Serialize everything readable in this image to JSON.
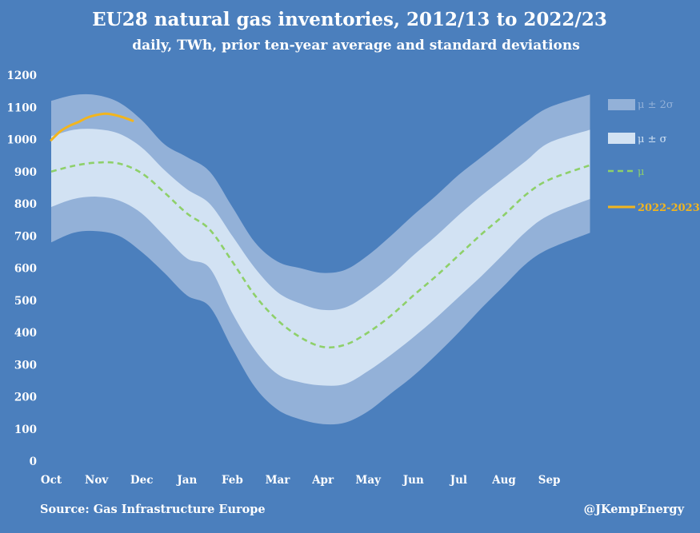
{
  "chart_data": {
    "type": "area",
    "title": "EU28 natural gas inventories, 2012/13 to 2022/23",
    "subtitle": "daily, TWh, prior ten-year average and standard deviations",
    "xlabel": "",
    "ylabel": "",
    "ylim": [
      0,
      1200
    ],
    "yticks": [
      0,
      100,
      200,
      300,
      400,
      500,
      600,
      700,
      800,
      900,
      1000,
      1100,
      1200
    ],
    "months": [
      "Oct",
      "Nov",
      "Dec",
      "Jan",
      "Feb",
      "Mar",
      "Apr",
      "May",
      "Jun",
      "Jul",
      "Aug",
      "Sep"
    ],
    "x_month_index": [
      0,
      0.5,
      1,
      1.5,
      2,
      2.5,
      3,
      3.5,
      4,
      4.5,
      5,
      5.5,
      6,
      6.5,
      7,
      7.5,
      8,
      8.5,
      9,
      9.5,
      10,
      10.5,
      11,
      11.9
    ],
    "series": [
      {
        "name": "μ",
        "label": "μ",
        "color": "#8ed06a",
        "values": [
          900,
          918,
          928,
          925,
          895,
          835,
          770,
          720,
          620,
          515,
          438,
          385,
          355,
          362,
          400,
          452,
          515,
          575,
          640,
          705,
          765,
          830,
          875,
          920
        ]
      },
      {
        "name": "mu_plus_sigma",
        "values": [
          1010,
          1030,
          1032,
          1018,
          975,
          905,
          845,
          800,
          700,
          600,
          525,
          490,
          470,
          478,
          520,
          575,
          640,
          700,
          765,
          825,
          880,
          935,
          990,
          1030
        ]
      },
      {
        "name": "mu_minus_sigma",
        "values": [
          790,
          815,
          822,
          810,
          770,
          700,
          630,
          600,
          460,
          345,
          270,
          245,
          235,
          240,
          280,
          330,
          385,
          445,
          510,
          575,
          645,
          715,
          765,
          815
        ]
      },
      {
        "name": "mu_plus_2sigma",
        "values": [
          1120,
          1138,
          1138,
          1115,
          1060,
          985,
          945,
          900,
          790,
          680,
          620,
          600,
          585,
          595,
          640,
          700,
          765,
          825,
          890,
          945,
          1000,
          1055,
          1100,
          1140
        ]
      },
      {
        "name": "mu_minus_2sigma",
        "values": [
          680,
          710,
          715,
          700,
          650,
          585,
          515,
          480,
          350,
          230,
          160,
          130,
          115,
          120,
          155,
          210,
          265,
          330,
          400,
          475,
          545,
          615,
          660,
          710
        ]
      },
      {
        "name": "2022-2023",
        "label": "2022-2023",
        "color": "#f2b51e",
        "x_month_index": [
          0,
          0.2,
          0.4,
          0.6,
          0.8,
          1.0,
          1.2,
          1.4,
          1.6,
          1.8
        ],
        "values": [
          998,
          1025,
          1042,
          1054,
          1068,
          1076,
          1080,
          1076,
          1068,
          1058
        ]
      }
    ],
    "legend": {
      "position": "right",
      "band2_label": "μ ± 2σ",
      "band1_label": "μ ± σ",
      "mean_label": "μ",
      "current_label": "2022-2023",
      "band2_color": "#93b1d8",
      "band1_color": "#d2e2f3"
    },
    "grid": false
  },
  "footer": {
    "source": "Source: Gas Infrastructure Europe",
    "credit": "@JKempEnergy"
  },
  "colors": {
    "background": "#4b7fbd",
    "band2": "#93b1d8",
    "band1": "#d2e2f3",
    "mean": "#8ed06a",
    "current": "#f2b51e"
  }
}
